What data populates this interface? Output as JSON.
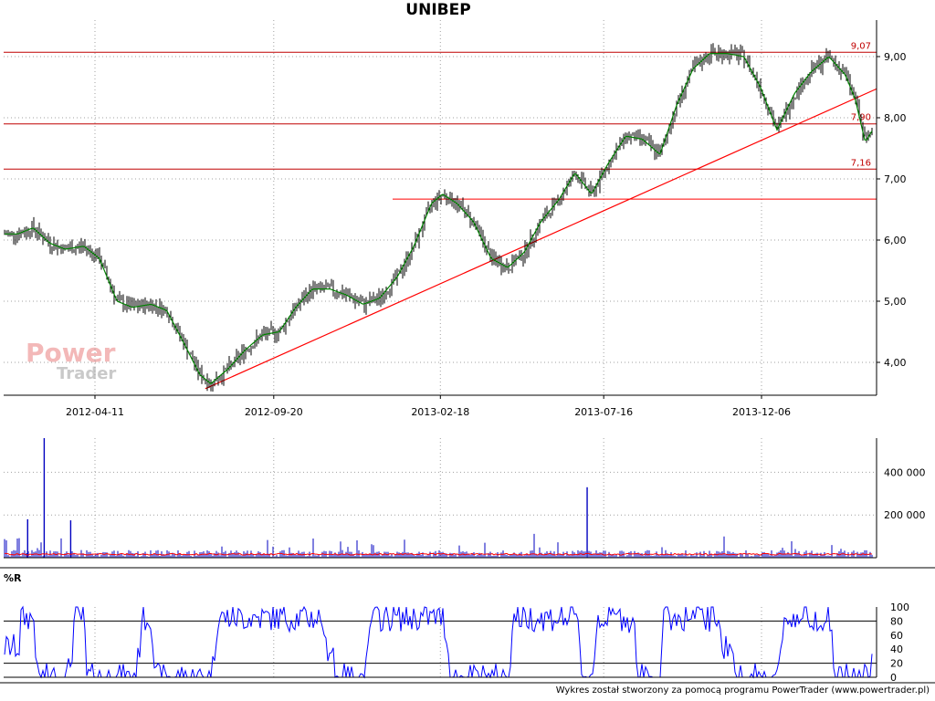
{
  "chart_data": [
    {
      "type": "line",
      "title": "UNIBEP",
      "ylim": [
        3.55,
        9.3
      ],
      "y_ticks": [
        "4,00",
        "5,00",
        "6,00",
        "7,00",
        "8,00",
        "9,00"
      ],
      "y_tick_values": [
        4,
        5,
        6,
        7,
        8,
        9
      ],
      "x_ticks": [
        "2012-04-11",
        "2012-09-20",
        "2013-02-18",
        "2013-07-16",
        "2013-12-06"
      ],
      "grid": true,
      "levels": [
        {
          "label": "9,07",
          "value": 9.07
        },
        {
          "label": "7,90",
          "value": 7.9
        },
        {
          "label": "7,16",
          "value": 7.16
        }
      ],
      "level_line_value": 6.67,
      "trendline": {
        "start": [
          "2012-07-20",
          3.57
        ],
        "end": [
          "2014-03-20",
          8.47
        ]
      },
      "series": [
        {
          "kind": "price",
          "x": [
            "2012-02-01",
            "2012-02-15",
            "2012-03-01",
            "2012-03-15",
            "2012-04-01",
            "2012-04-15",
            "2012-05-01",
            "2012-05-15",
            "2012-06-01",
            "2012-06-15",
            "2012-07-01",
            "2012-07-15",
            "2012-07-25",
            "2012-08-10",
            "2012-08-25",
            "2012-09-10",
            "2012-09-25",
            "2012-10-10",
            "2012-10-25",
            "2012-11-10",
            "2012-11-25",
            "2012-12-10",
            "2012-12-25",
            "2013-01-10",
            "2013-01-25",
            "2013-02-10",
            "2013-02-20",
            "2013-03-05",
            "2013-03-20",
            "2013-04-05",
            "2013-04-20",
            "2013-05-05",
            "2013-05-20",
            "2013-06-05",
            "2013-06-20",
            "2013-07-05",
            "2013-07-20",
            "2013-08-05",
            "2013-08-20",
            "2013-09-05",
            "2013-09-20",
            "2013-10-05",
            "2013-10-20",
            "2013-11-05",
            "2013-11-20",
            "2013-12-05",
            "2013-12-20",
            "2014-01-05",
            "2014-01-20",
            "2014-02-05",
            "2014-02-20",
            "2014-03-01",
            "2014-03-10",
            "2014-03-20"
          ],
          "values": [
            6.1,
            6.2,
            5.95,
            5.85,
            5.9,
            5.7,
            5.0,
            4.9,
            4.95,
            4.85,
            4.3,
            3.8,
            3.65,
            3.9,
            4.2,
            4.45,
            4.5,
            4.9,
            5.2,
            5.2,
            5.1,
            4.95,
            5.05,
            5.4,
            5.9,
            6.6,
            6.75,
            6.6,
            6.3,
            5.7,
            5.55,
            5.8,
            6.3,
            6.65,
            7.1,
            6.75,
            7.25,
            7.7,
            7.65,
            7.4,
            8.2,
            8.8,
            9.05,
            9.05,
            9.0,
            8.5,
            7.8,
            8.4,
            8.75,
            9.0,
            8.7,
            8.3,
            7.6,
            7.9
          ]
        },
        {
          "kind": "volume",
          "ylim": [
            0,
            560000
          ],
          "y_ticks": [
            "200 000",
            "400 000"
          ],
          "y_tick_values": [
            200000,
            400000
          ],
          "spikes": [
            {
              "x": "2012-02-25",
              "value": 560000
            },
            {
              "x": "2013-07-01",
              "value": 330000
            },
            {
              "x": "2012-03-20",
              "value": 175000
            },
            {
              "x": "2012-02-10",
              "value": 180000
            }
          ],
          "base_level": 20000
        },
        {
          "kind": "%R",
          "title": "%R",
          "ylim": [
            0,
            100
          ],
          "y_ticks": [
            "0",
            "20",
            "40",
            "60",
            "80",
            "100"
          ],
          "y_tick_values": [
            0,
            20,
            40,
            60,
            80,
            100
          ],
          "reference_lines": [
            20,
            80
          ]
        }
      ]
    }
  ],
  "footer": "Wykres został stworzony za pomocą programu PowerTrader (www.powertrader.pl)",
  "watermark": {
    "line1": "Power",
    "line2": "Trader"
  },
  "colors": {
    "price_bars": "#000000",
    "moving_average": "#008000",
    "level_lines": "#c00000",
    "trendline": "#ff0000",
    "volume_bars": "#0000c0",
    "volume_average": "#ff0000",
    "williams": "#0000ff",
    "grid": "#a0a0a0"
  }
}
